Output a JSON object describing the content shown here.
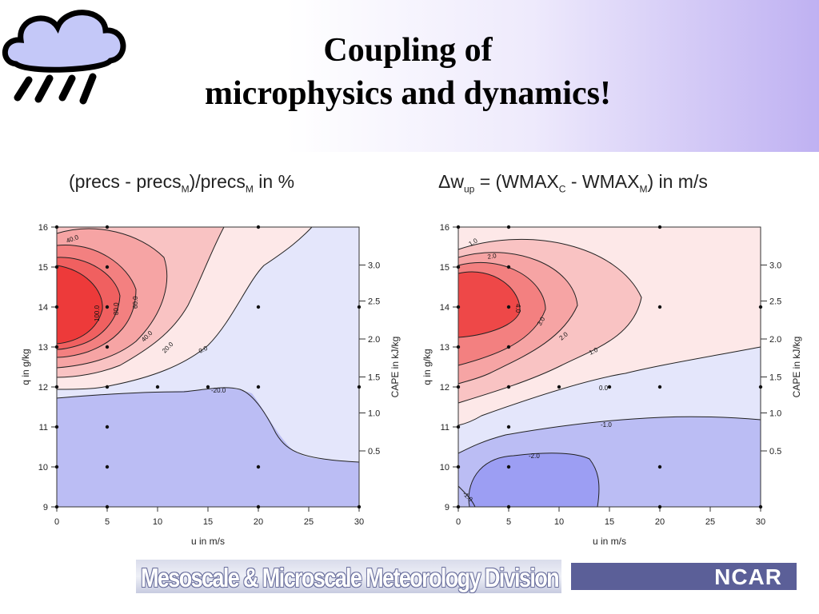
{
  "slide": {
    "title_line1": "Coupling of",
    "title_line2": "microphysics and dynamics!",
    "footer_left": "Mesoscale & Microscale Meteorology Division",
    "footer_right": "NCAR",
    "logo": "rain-cloud-icon"
  },
  "colors": {
    "strong_positive": "#f03a3a",
    "positive": "#f8a8a8",
    "weak_positive": "#fde6e6",
    "weak_negative": "#e6e8fb",
    "negative": "#b8baf2",
    "strong_negative": "#9a9cf0"
  },
  "chart_data": [
    {
      "type": "contour",
      "title": {
        "pre": "(precs - precs",
        "sub1": "M",
        "mid": ")/precs",
        "sub2": "M",
        "post": " in %"
      },
      "xlabel": "u  in  m/s",
      "ylabel": "q  in  g/kg",
      "y2label": "CAPE  in  kJ/kg",
      "xlim": [
        0,
        30
      ],
      "ylim": [
        9,
        16
      ],
      "x_ticks": [
        0,
        5,
        10,
        15,
        20,
        25,
        30
      ],
      "y_ticks": [
        9,
        10,
        11,
        12,
        13,
        14,
        15,
        16
      ],
      "y2_ticks": [
        "0.5",
        "1.0",
        "1.5",
        "2.0",
        "2.5",
        "3.0"
      ],
      "y2_tick_q": [
        10.4,
        11.35,
        12.25,
        13.2,
        14.15,
        15.05
      ],
      "contour_labels": [
        "40.0",
        "100.0",
        "80.0",
        "60.0",
        "40.0",
        "20.0",
        "0.0",
        "-20.0"
      ],
      "sample_points": [
        [
          0,
          9
        ],
        [
          5,
          9
        ],
        [
          20,
          9
        ],
        [
          30,
          9
        ],
        [
          0,
          10
        ],
        [
          5,
          10
        ],
        [
          20,
          10
        ],
        [
          0,
          11
        ],
        [
          5,
          11
        ],
        [
          0,
          12
        ],
        [
          5,
          12
        ],
        [
          10,
          12
        ],
        [
          15,
          12
        ],
        [
          20,
          12
        ],
        [
          30,
          12
        ],
        [
          0,
          13
        ],
        [
          5,
          13
        ],
        [
          0,
          14
        ],
        [
          5,
          14
        ],
        [
          20,
          14
        ],
        [
          30,
          14
        ],
        [
          0,
          15
        ],
        [
          5,
          15
        ],
        [
          0,
          16
        ],
        [
          5,
          16
        ],
        [
          20,
          16
        ]
      ]
    },
    {
      "type": "contour",
      "title": {
        "pre": "Δw",
        "sub1": "up",
        "mid": " = (WMAX",
        "sub2": "C",
        "mid2": " - WMAX",
        "sub3": "M",
        "post": ")  in  m/s"
      },
      "xlabel": "u  in  m/s",
      "ylabel": "q  in  g/kg",
      "y2label": "CAPE  in  kJ/kg",
      "xlim": [
        0,
        30
      ],
      "ylim": [
        9,
        16
      ],
      "x_ticks": [
        0,
        5,
        10,
        15,
        20,
        25,
        30
      ],
      "y_ticks": [
        9,
        10,
        11,
        12,
        13,
        14,
        15,
        16
      ],
      "y2_ticks": [
        "0.5",
        "1.0",
        "1.5",
        "2.0",
        "2.5",
        "3.0"
      ],
      "y2_tick_q": [
        10.4,
        11.35,
        12.25,
        13.2,
        14.15,
        15.05
      ],
      "contour_labels": [
        "1.0",
        "2.0",
        "4.0",
        "3.0",
        "2.0",
        "1.0",
        "0.0",
        "-1.0",
        "-2.0",
        "-1.0"
      ],
      "sample_points": [
        [
          0,
          9
        ],
        [
          5,
          9
        ],
        [
          20,
          9
        ],
        [
          30,
          9
        ],
        [
          0,
          10
        ],
        [
          5,
          10
        ],
        [
          20,
          10
        ],
        [
          0,
          11
        ],
        [
          5,
          11
        ],
        [
          0,
          12
        ],
        [
          5,
          12
        ],
        [
          10,
          12
        ],
        [
          15,
          12
        ],
        [
          20,
          12
        ],
        [
          30,
          12
        ],
        [
          0,
          13
        ],
        [
          5,
          13
        ],
        [
          0,
          14
        ],
        [
          5,
          14
        ],
        [
          20,
          14
        ],
        [
          30,
          14
        ],
        [
          0,
          15
        ],
        [
          5,
          15
        ],
        [
          0,
          16
        ],
        [
          5,
          16
        ],
        [
          20,
          16
        ]
      ]
    }
  ]
}
